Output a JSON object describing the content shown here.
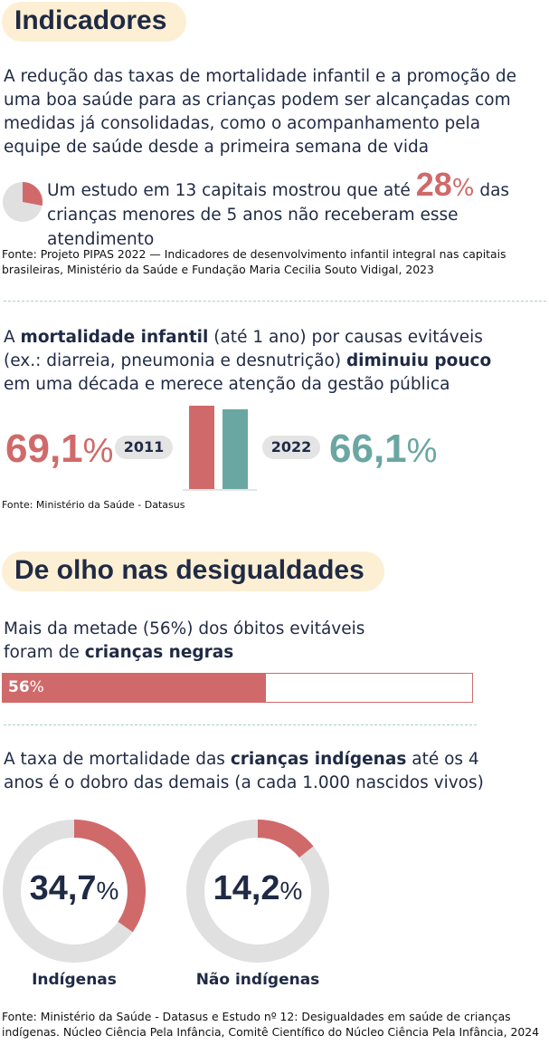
{
  "section1": {
    "title": "Indicadores",
    "intro": "A redução das taxas de mortalidade infantil e a promoção de uma boa saúde para as crianças podem ser alcançadas com medidas já consolidadas, como o acompanhamento pela equipe de saúde desde a primeira semana de vida",
    "study": {
      "pre": "Um estudo em 13 capitais mostrou que até",
      "value": "28",
      "pct": "%",
      "post1": "das",
      "post2": "crianças menores de 5 anos não receberam esse atendimento",
      "fraction": 0.28
    },
    "source": "Fonte: Projeto PIPAS 2022 — Indicadores de desenvolvimento infantil integral nas capitais brasileiras, Ministério da Saúde e Fundação Maria Cecilia Souto Vidigal, 2023"
  },
  "section2": {
    "text": {
      "a": "A ",
      "b1": "mortalidade infantil",
      "c": " (até 1 ano) por causas evitáveis",
      "d": "(ex.: diarreia, pneumonia e desnutrição) ",
      "b2": "diminuiu pouco",
      "e": "em uma década e merece atenção da gestão pública"
    },
    "value_2011": "69,1",
    "year_2011": "2011",
    "value_2022": "66,1",
    "year_2022": "2022",
    "pct": "%",
    "source": "Fonte: Ministério da Saúde - Datasus"
  },
  "section3": {
    "title": "De olho nas desigualdades",
    "text1": "Mais da metade (56%) dos óbitos evitáveis",
    "text2": "foram de ",
    "text2_bold": "crianças negras",
    "bar_value": "56",
    "bar_pct": "%",
    "text3a": "A taxa de mortalidade das ",
    "text3_bold": "crianças indígenas",
    "text3b": " até os 4",
    "text3c": "anos é o dobro das demais (a cada 1.000 nascidos vivos)",
    "source": "Fonte: Ministério da Saúde - Datasus e Estudo nº 12: Desigualdades em saúde de crianças indígenas.  Núcleo Ciência Pela Infância, Comitê Científico do Núcleo Ciência Pela Infância, 2024"
  },
  "colors": {
    "red": "#d06a6a",
    "teal": "#6ba7a2",
    "grey": "#e0e0e0",
    "navy": "#1f2a44",
    "cream": "#fcefd3"
  },
  "chart_data": [
    {
      "type": "pie",
      "values": [
        28,
        72
      ]
    },
    {
      "type": "bar",
      "categories": [
        "2011",
        "2022"
      ],
      "values": [
        69.1,
        66.1
      ]
    },
    {
      "type": "bar",
      "values": [
        56
      ]
    },
    {
      "type": "pie",
      "categories": [
        "Indígenas",
        "Não indígenas"
      ],
      "values": [
        34.7,
        14.2
      ]
    }
  ]
}
